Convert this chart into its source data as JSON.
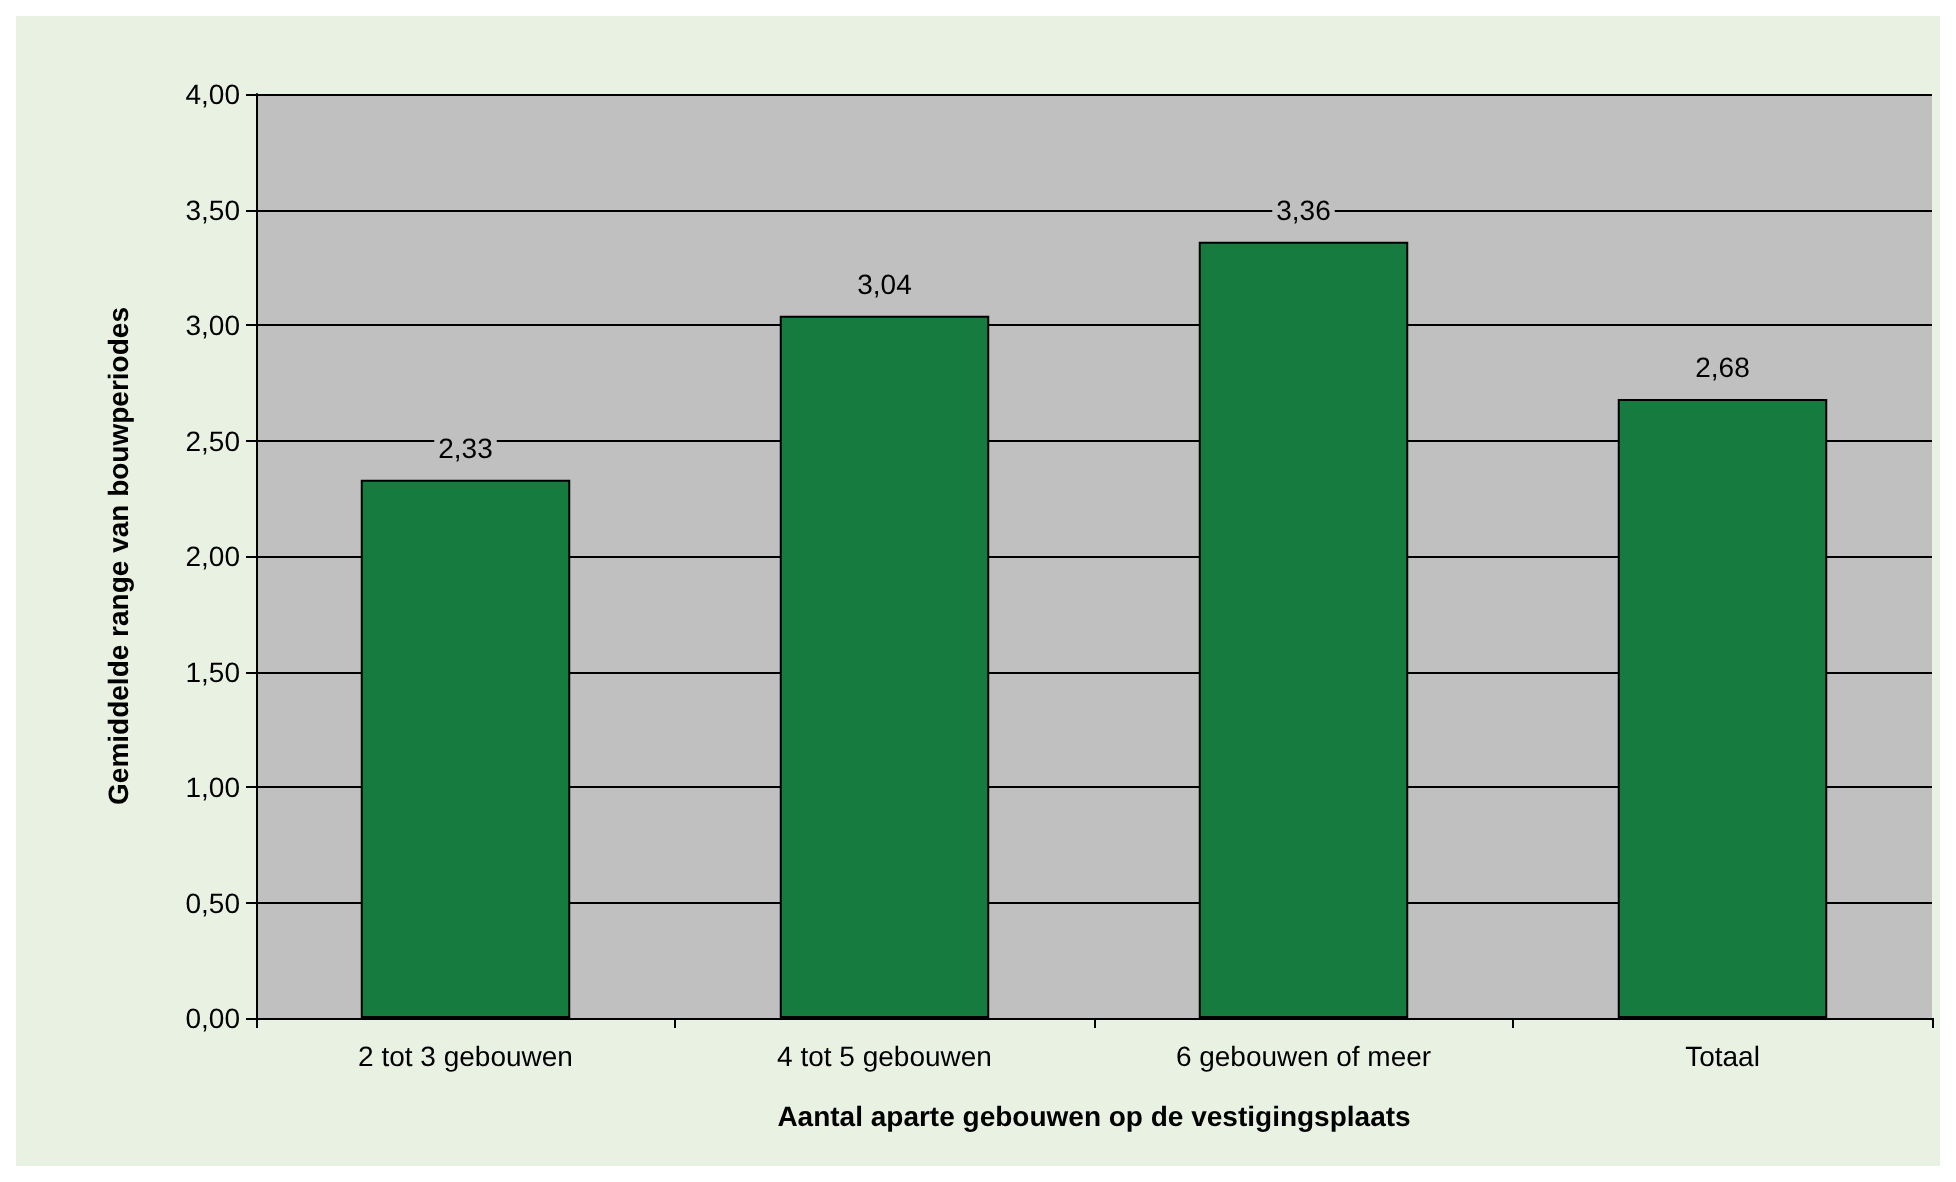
{
  "chart_data": {
    "type": "bar",
    "xlabel": "Aantal aparte gebouwen op de vestigingsplaats",
    "ylabel": "Gemiddelde range van bouwperiodes",
    "categories": [
      "2 tot 3 gebouwen",
      "4 tot 5 gebouwen",
      "6 gebouwen of meer",
      "Totaal"
    ],
    "values": [
      2.33,
      3.04,
      3.36,
      2.68
    ],
    "value_labels": [
      "2,33",
      "3,04",
      "3,36",
      "2,68"
    ],
    "color": "#167b3e",
    "ylim": [
      0,
      4
    ],
    "yticks": [
      {
        "value": 0,
        "label": "0,00"
      },
      {
        "value": 0.5,
        "label": "0,50"
      },
      {
        "value": 1,
        "label": "1,00"
      },
      {
        "value": 1.5,
        "label": "1,50"
      },
      {
        "value": 2,
        "label": "2,00"
      },
      {
        "value": 2.5,
        "label": "2,50"
      },
      {
        "value": 3,
        "label": "3,00"
      },
      {
        "value": 3.5,
        "label": "3,50"
      },
      {
        "value": 4,
        "label": "4,00"
      }
    ],
    "grid": "y"
  }
}
